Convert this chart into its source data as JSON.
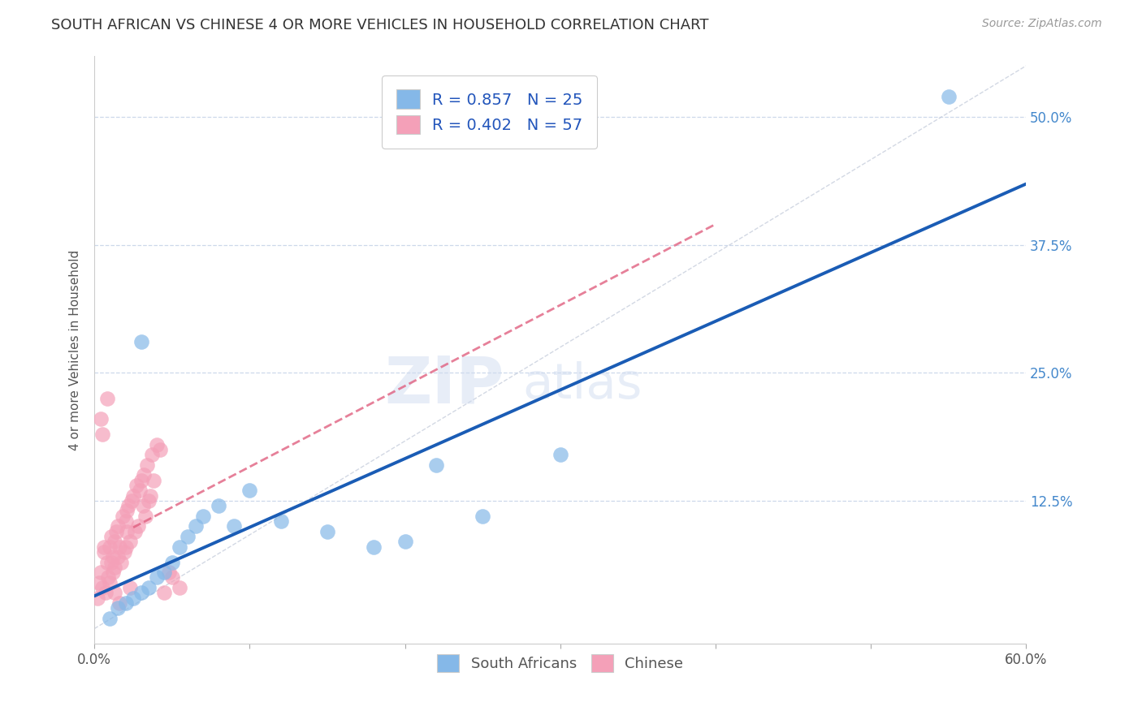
{
  "title": "SOUTH AFRICAN VS CHINESE 4 OR MORE VEHICLES IN HOUSEHOLD CORRELATION CHART",
  "source": "Source: ZipAtlas.com",
  "ylabel": "4 or more Vehicles in Household",
  "xmin": 0.0,
  "xmax": 60.0,
  "ymin": -1.5,
  "ymax": 56.0,
  "ytick_labels": [
    "12.5%",
    "25.0%",
    "37.5%",
    "50.0%"
  ],
  "ytick_values": [
    12.5,
    25.0,
    37.5,
    50.0
  ],
  "xtick_values": [
    0,
    10,
    20,
    30,
    40,
    50,
    60
  ],
  "xtick_labels": [
    "0.0%",
    "",
    "",
    "",
    "",
    "",
    "60.0%"
  ],
  "legend_entries": [
    {
      "label": "R = 0.857   N = 25",
      "color": "#aac8f0"
    },
    {
      "label": "R = 0.402   N = 57",
      "color": "#f5b0c5"
    }
  ],
  "sa_scatter_x": [
    1.0,
    1.5,
    2.0,
    2.5,
    3.0,
    3.5,
    4.0,
    4.5,
    5.0,
    5.5,
    6.0,
    6.5,
    7.0,
    8.0,
    9.0,
    10.0,
    12.0,
    15.0,
    18.0,
    22.0,
    25.0,
    30.0,
    3.0,
    20.0,
    55.0
  ],
  "sa_scatter_y": [
    1.0,
    2.0,
    2.5,
    3.0,
    3.5,
    4.0,
    5.0,
    5.5,
    6.5,
    8.0,
    9.0,
    10.0,
    11.0,
    12.0,
    10.0,
    13.5,
    10.5,
    9.5,
    8.0,
    16.0,
    11.0,
    17.0,
    28.0,
    8.5,
    52.0
  ],
  "ch_scatter_x": [
    0.2,
    0.3,
    0.4,
    0.5,
    0.6,
    0.7,
    0.8,
    0.9,
    1.0,
    1.0,
    1.1,
    1.1,
    1.2,
    1.2,
    1.3,
    1.3,
    1.4,
    1.5,
    1.5,
    1.6,
    1.7,
    1.8,
    1.9,
    2.0,
    2.0,
    2.1,
    2.1,
    2.2,
    2.3,
    2.4,
    2.5,
    2.6,
    2.7,
    2.8,
    2.9,
    3.0,
    3.1,
    3.2,
    3.3,
    3.4,
    3.5,
    3.6,
    3.7,
    3.8,
    4.0,
    4.2,
    4.5,
    5.0,
    5.5,
    0.4,
    0.8,
    0.5,
    1.3,
    2.3,
    4.8,
    1.6,
    0.6
  ],
  "ch_scatter_y": [
    3.0,
    4.5,
    5.5,
    4.0,
    7.5,
    3.5,
    6.5,
    5.0,
    8.0,
    4.5,
    9.0,
    6.5,
    7.0,
    5.5,
    8.5,
    6.0,
    9.5,
    10.0,
    7.0,
    8.0,
    6.5,
    11.0,
    7.5,
    10.5,
    8.0,
    9.5,
    11.5,
    12.0,
    8.5,
    12.5,
    13.0,
    9.5,
    14.0,
    10.0,
    13.5,
    14.5,
    12.0,
    15.0,
    11.0,
    16.0,
    12.5,
    13.0,
    17.0,
    14.5,
    18.0,
    17.5,
    3.5,
    5.0,
    4.0,
    20.5,
    22.5,
    19.0,
    3.5,
    4.0,
    5.5,
    2.5,
    8.0
  ],
  "sa_color": "#85b8e8",
  "ch_color": "#f4a0b8",
  "sa_line_color": "#1a5cb5",
  "ch_line_color": "#e06080",
  "sa_line_start_x": 0.0,
  "sa_line_end_x": 60.0,
  "ch_line_start_x": 2.5,
  "ch_line_end_x": 40.0,
  "watermark_zip": "ZIP",
  "watermark_atlas": "atlas",
  "background_color": "#ffffff",
  "grid_color": "#c8d4e8",
  "right_axis_color": "#4488cc",
  "title_fontsize": 13,
  "source_fontsize": 10
}
